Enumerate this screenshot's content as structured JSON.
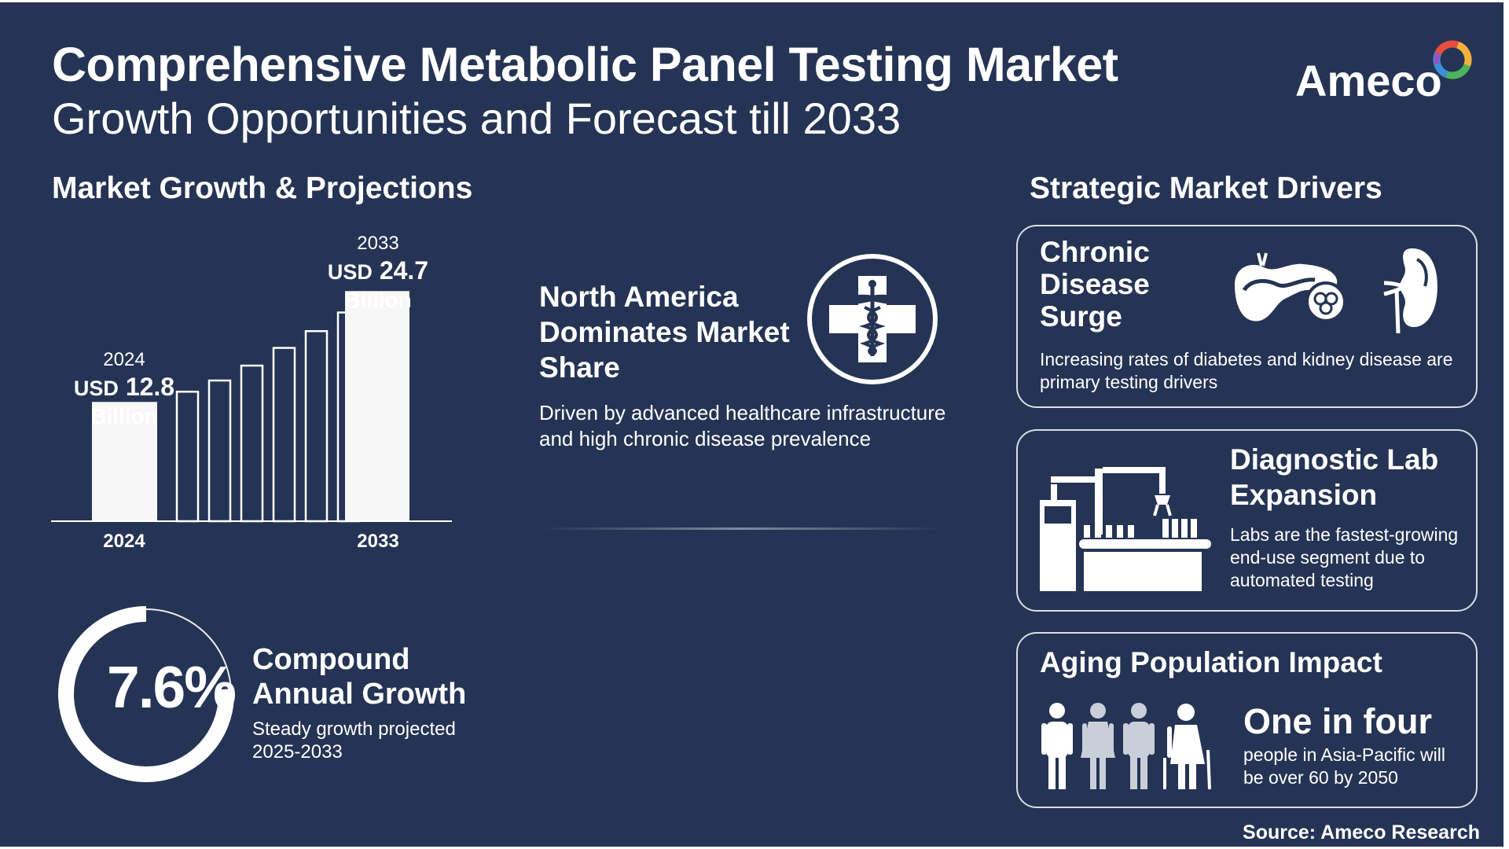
{
  "header": {
    "title": "Comprehensive Metabolic Panel Testing Market",
    "subtitle": "Growth Opportunities and Forecast till 2033",
    "logo_text": "Ameco"
  },
  "growth": {
    "heading": "Market Growth & Projections",
    "start": {
      "year": "2024",
      "currency": "USD",
      "amount": "12.8",
      "unit": "Billion"
    },
    "end": {
      "year": "2033",
      "currency": "USD",
      "amount": "24.7",
      "unit": "Billion"
    },
    "axis_labels": [
      "2024",
      "2033"
    ]
  },
  "chart_data": {
    "type": "bar",
    "categories": [
      "2024",
      "",
      "",
      "",
      "",
      "",
      "",
      "2033"
    ],
    "values": [
      12.8,
      13.9,
      15.1,
      16.7,
      18.6,
      20.4,
      22.4,
      24.7
    ],
    "title": "",
    "xlabel": "",
    "ylabel": "",
    "ylim": [
      0,
      27
    ],
    "grid": false,
    "legend": "none"
  },
  "cagr": {
    "value": "7.6%",
    "fraction": 0.76,
    "label": "Compound Annual Growth",
    "note": "Steady growth projected 2025-2033"
  },
  "region": {
    "title": "North America Dominates Market Share",
    "description": "Driven by advanced healthcare infrastructure and high chronic disease prevalence",
    "icon": "medical-cross-caduceus-icon"
  },
  "drivers": {
    "heading": "Strategic Market Drivers",
    "chronic": {
      "title": "Chronic Disease Surge",
      "description": "Increasing rates of diabetes and kidney disease are primary testing drivers",
      "icons": [
        "pancreas-icon",
        "kidney-icon"
      ]
    },
    "lab": {
      "title": "Diagnostic Lab Expansion",
      "description": "Labs are the fastest-growing end-use segment due to automated testing",
      "icon": "automated-lab-icon"
    },
    "aging": {
      "title": "Aging Population Impact",
      "highlight": "One in four",
      "description": "people in Asia-Pacific will be over 60 by 2050",
      "icon": "people-group-icon"
    }
  },
  "source": "Source: Ameco Research",
  "colors": {
    "background": "#253454",
    "foreground": "#ffffff",
    "card_border": "#d7dde6"
  }
}
